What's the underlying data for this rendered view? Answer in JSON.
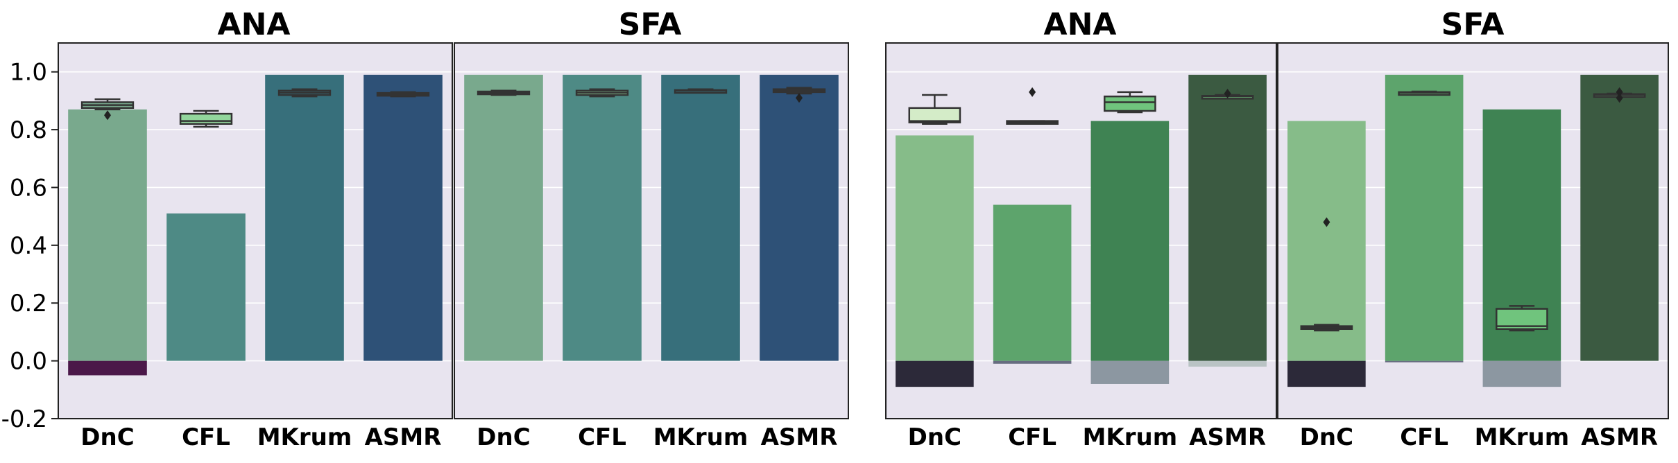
{
  "colors": {
    "panel_bg": "#e8e4ef",
    "grid": "#ffffff",
    "box_stroke": "#333333",
    "left_fills": [
      "#79a98d",
      "#4e8a85",
      "#376f7b",
      "#2e5177"
    ],
    "left_neg_fills": [
      "#4b1849",
      "#4e8a85",
      "#376f7b",
      "#2e5177"
    ],
    "right_fills": [
      "#86bc89",
      "#5da46c",
      "#3f8353",
      "#3b5a41"
    ],
    "right_neg_fills": [
      "#2c2939",
      "#676d80",
      "#8c97a1",
      "#b9c3c4"
    ],
    "box_fill_left": "#92d69c",
    "box_fill_right_light": "#d4ecc8",
    "box_fill_right": "#70c47d"
  },
  "chart_data": [
    {
      "type": "bar",
      "title": "ANA",
      "categories": [
        "DnC",
        "CFL",
        "MKrum",
        "ASMR"
      ],
      "ylim": [
        -0.2,
        1.1
      ],
      "yticks": [
        "-0.2",
        "0.0",
        "0.2",
        "0.4",
        "0.6",
        "0.8",
        "1.0"
      ],
      "ytick_values": [
        -0.2,
        0.0,
        0.2,
        0.4,
        0.6,
        0.8,
        1.0
      ],
      "grid": true,
      "positive_values": [
        0.87,
        0.51,
        0.99,
        0.99
      ],
      "negative_values": [
        -0.05,
        0.0,
        0.0,
        0.0
      ],
      "boxes": [
        {
          "min": 0.87,
          "q1": 0.875,
          "median": 0.885,
          "q3": 0.895,
          "max": 0.905,
          "outliers": [
            0.85
          ]
        },
        {
          "min": 0.81,
          "q1": 0.82,
          "median": 0.83,
          "q3": 0.855,
          "max": 0.865,
          "outliers": []
        },
        {
          "min": 0.915,
          "q1": 0.92,
          "median": 0.928,
          "q3": 0.935,
          "max": 0.94,
          "outliers": []
        },
        {
          "min": 0.915,
          "q1": 0.918,
          "median": 0.922,
          "q3": 0.927,
          "max": 0.93,
          "outliers": []
        }
      ]
    },
    {
      "type": "bar",
      "title": "SFA",
      "categories": [
        "DnC",
        "CFL",
        "MKrum",
        "ASMR"
      ],
      "ylim": [
        -0.2,
        1.1
      ],
      "grid": true,
      "positive_values": [
        0.99,
        0.99,
        0.99,
        0.99
      ],
      "negative_values": [
        0.0,
        0.0,
        0.0,
        0.0
      ],
      "boxes": [
        {
          "min": 0.92,
          "q1": 0.925,
          "median": 0.928,
          "q3": 0.932,
          "max": 0.935,
          "outliers": []
        },
        {
          "min": 0.915,
          "q1": 0.92,
          "median": 0.928,
          "q3": 0.935,
          "max": 0.94,
          "outliers": []
        },
        {
          "min": 0.93,
          "q1": 0.932,
          "median": 0.935,
          "q3": 0.937,
          "max": 0.94,
          "outliers": []
        },
        {
          "min": 0.925,
          "q1": 0.93,
          "median": 0.935,
          "q3": 0.94,
          "max": 0.945,
          "outliers": [
            0.91
          ]
        }
      ]
    },
    {
      "type": "bar",
      "title": "ANA",
      "categories": [
        "DnC",
        "CFL",
        "MKrum",
        "ASMR"
      ],
      "ylim": [
        -0.2,
        1.1
      ],
      "grid": true,
      "positive_values": [
        0.78,
        0.54,
        0.83,
        0.99
      ],
      "negative_values": [
        -0.09,
        -0.01,
        -0.08,
        -0.02
      ],
      "boxes": [
        {
          "min": 0.82,
          "q1": 0.825,
          "median": 0.83,
          "q3": 0.875,
          "max": 0.92,
          "outliers": []
        },
        {
          "min": 0.82,
          "q1": 0.82,
          "median": 0.825,
          "q3": 0.83,
          "max": 0.83,
          "outliers": [
            0.93
          ]
        },
        {
          "min": 0.86,
          "q1": 0.865,
          "median": 0.895,
          "q3": 0.915,
          "max": 0.93,
          "outliers": []
        },
        {
          "min": 0.91,
          "q1": 0.912,
          "median": 0.915,
          "q3": 0.917,
          "max": 0.92,
          "outliers": [
            0.925
          ]
        }
      ]
    },
    {
      "type": "bar",
      "title": "SFA",
      "categories": [
        "DnC",
        "CFL",
        "MKrum",
        "ASMR"
      ],
      "ylim": [
        -0.2,
        1.1
      ],
      "grid": true,
      "positive_values": [
        0.83,
        0.99,
        0.87,
        0.99
      ],
      "negative_values": [
        -0.09,
        -0.005,
        -0.09,
        0.0
      ],
      "boxes": [
        {
          "min": 0.105,
          "q1": 0.11,
          "median": 0.115,
          "q3": 0.12,
          "max": 0.125,
          "outliers": [
            0.48
          ]
        },
        {
          "min": 0.925,
          "q1": 0.927,
          "median": 0.928,
          "q3": 0.93,
          "max": 0.932,
          "outliers": []
        },
        {
          "min": 0.105,
          "q1": 0.11,
          "median": 0.12,
          "q3": 0.18,
          "max": 0.19,
          "outliers": []
        },
        {
          "min": 0.915,
          "q1": 0.918,
          "median": 0.92,
          "q3": 0.923,
          "max": 0.925,
          "outliers": [
            0.93,
            0.91
          ]
        }
      ]
    }
  ]
}
